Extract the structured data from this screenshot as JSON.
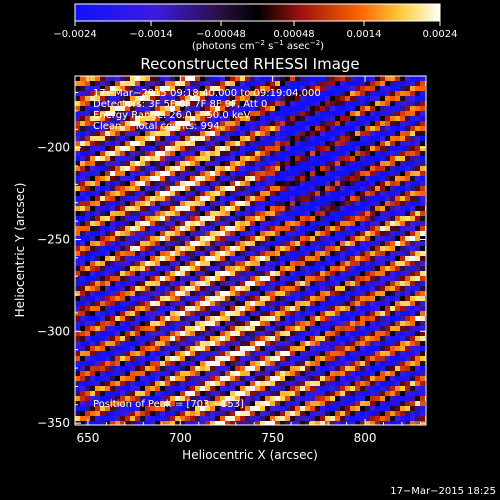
{
  "colorbar": {
    "tick_labels": [
      "−0.0024",
      "−0.0014",
      "−0.00048",
      "0.00048",
      "0.0014",
      "0.0024"
    ],
    "tick_values": [
      -0.0024,
      -0.0014,
      -0.00048,
      0.00048,
      0.0014,
      0.0024
    ],
    "range": [
      -0.0024,
      0.0024
    ],
    "units_prefix": "(photons cm",
    "units_exp1": "−2",
    "units_mid": " s",
    "units_exp2": "−1",
    "units_mid2": " asec",
    "units_exp3": "−2",
    "units_suffix": ")"
  },
  "chart_data": {
    "type": "heatmap",
    "title": "Reconstructed RHESSI Image",
    "xlabel": "Heliocentric X (arcsec)",
    "ylabel": "Heliocentric Y (arcsec)",
    "xlim": [
      643,
      833
    ],
    "ylim": [
      -351,
      -161
    ],
    "x_ticks": [
      650,
      700,
      750,
      800
    ],
    "y_ticks": [
      -200,
      -250,
      -300,
      -350
    ],
    "x_tick_labels": [
      "650",
      "700",
      "750",
      "800"
    ],
    "y_tick_labels": [
      "−200",
      "−250",
      "−300",
      "−350"
    ],
    "annotations": [
      "17−Mar−2015 09:18:40.000 to 09:19:04.000",
      "Detectors: 3F 5F 6F 7F 8F 9F, Att 0",
      "Energy Range: 26.0 − 50.0 keV",
      "Clean    Total counts: 994."
    ],
    "peak_label": "Position of Peak = [703 −353]",
    "stripe_pattern": "diagonal fringes, slope about −0.42, period about 20 arcsec"
  },
  "footer": {
    "date": "17−Mar−2015 18:25"
  }
}
